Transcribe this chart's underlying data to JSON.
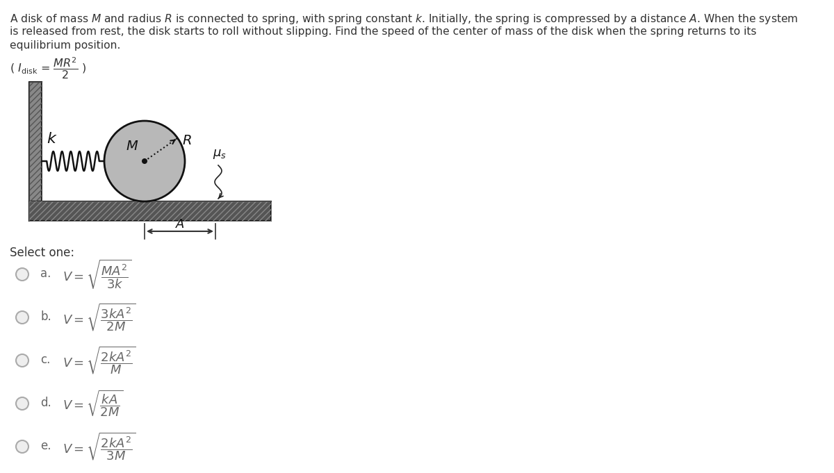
{
  "bg_color": "#ffffff",
  "fig_width": 12.0,
  "fig_height": 6.81,
  "problem_lines": [
    "A disk of mass $\\mathit{M}$ and radius $\\mathit{R}$ is connected to spring, with spring constant $\\mathit{k}$. Initially, the spring is compressed by a distance $\\mathit{A}$. When the system",
    "is released from rest, the disk starts to roll without slipping. Find the speed of the center of mass of the disk when the spring returns to its",
    "equilibrium position."
  ],
  "hint_line": "( $I_\\mathrm{disk}$ = $\\dfrac{MR^2}{2}$ )",
  "select_label": "Select one:",
  "options": [
    {
      "letter": "a.",
      "tex": "$V = \\sqrt{\\dfrac{MA^2}{3k}}$"
    },
    {
      "letter": "b.",
      "tex": "$V = \\sqrt{\\dfrac{3kA^2}{2M}}$"
    },
    {
      "letter": "c.",
      "tex": "$V = \\sqrt{\\dfrac{2kA^2}{M}}$"
    },
    {
      "letter": "d.",
      "tex": "$V = \\sqrt{\\dfrac{kA}{2M}}$"
    },
    {
      "letter": "e.",
      "tex": "$V = \\sqrt{\\dfrac{2kA^2}{3M}}$"
    }
  ],
  "text_color": "#333333",
  "radio_face": "#eeeeee",
  "radio_edge": "#aaaaaa",
  "disk_face": "#b8b8b8",
  "disk_edge": "#111111",
  "wall_face": "#888888",
  "floor_face": "#555555",
  "axle_color": "#666666",
  "spring_color": "#111111",
  "indicator_color": "#333333"
}
